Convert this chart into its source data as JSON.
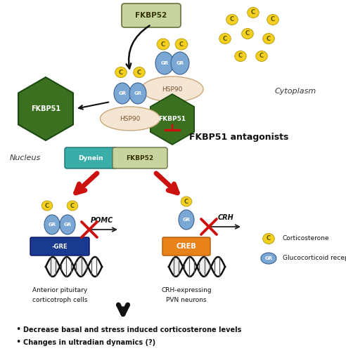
{
  "bg_color": "#ffffff",
  "cytoplasm_text": "Cytoplasm",
  "nucleus_text": "Nucleus",
  "fkbp52_top_label": "FKBP52",
  "fkbp51_left_label": "FKBP51",
  "fkbp51_antagonists_label": "FKBP51 antagonists",
  "hsp90_label": "HSP90",
  "fkbp51_complex_label": "FKBP51",
  "dynein_label": "Dynein",
  "fkbp52_bottom_label": "FKBP52",
  "gre_label": "-GRE",
  "pomc_label": "POMC",
  "crh_label": "CRH",
  "creb_label": "CREB",
  "anterior_label1": "Anterior pituitary",
  "anterior_label2": "corticotroph cells",
  "crh_cell_label1": "CRH-expressing",
  "crh_cell_label2": "PVN neurons",
  "legend_cort_label": "Corticosterone",
  "legend_gr_label": "Glucocorticoid receptor",
  "bullet1": "Decrease basal and stress induced corticosterone levels",
  "bullet2": "Changes in ultradian dynamics (?)",
  "gr_color": "#7ba7d4",
  "hsp90_color": "#f5e6d3",
  "fkbp51_green": "#3a7020",
  "fkbp52_color": "#c8d4a0",
  "dynein_color": "#3aada8",
  "creb_color": "#e8821a",
  "gre_color": "#1a3a8f",
  "cort_color": "#f5d020",
  "arrow_red": "#cc1111",
  "arrow_black": "#111111"
}
